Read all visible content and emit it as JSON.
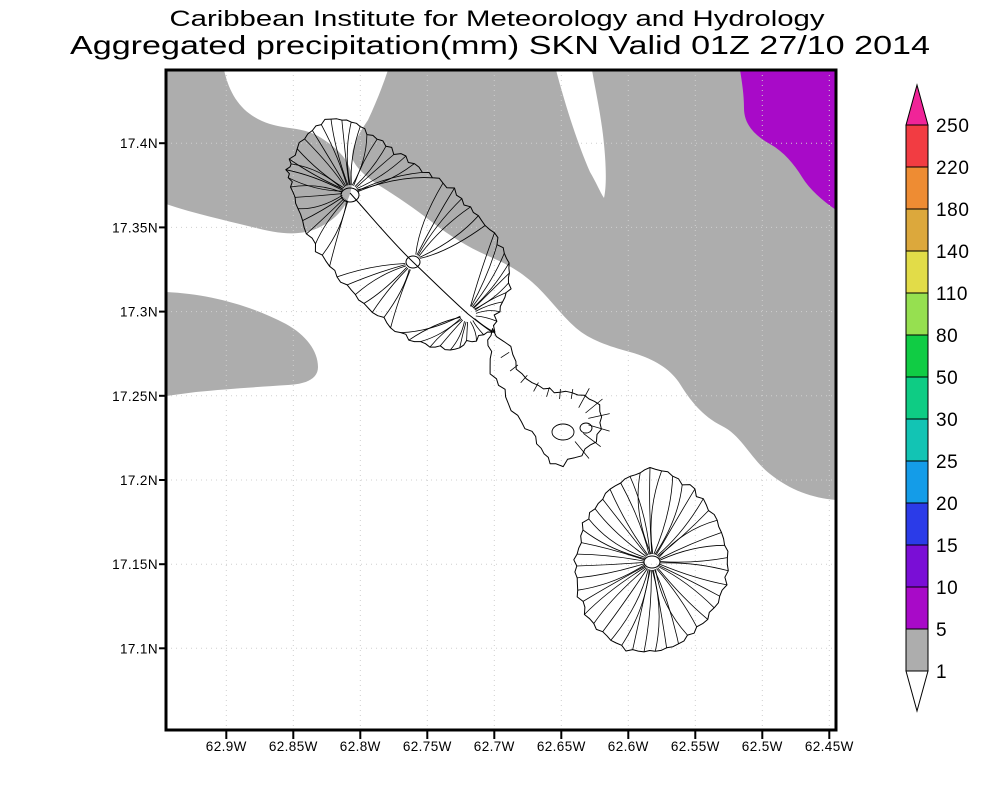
{
  "figure": {
    "title_line1": "Caribbean Institute for Meteorology and Hydrology",
    "title_line2": "Aggregated precipitation(mm) SKN Valid 01Z 27/10 2014"
  },
  "map": {
    "x_ticks": [
      {
        "label": "62.9W",
        "lon": 62.9
      },
      {
        "label": "62.85W",
        "lon": 62.85
      },
      {
        "label": "62.8W",
        "lon": 62.8
      },
      {
        "label": "62.75W",
        "lon": 62.75
      },
      {
        "label": "62.7W",
        "lon": 62.7
      },
      {
        "label": "62.65W",
        "lon": 62.65
      },
      {
        "label": "62.6W",
        "lon": 62.6
      },
      {
        "label": "62.55W",
        "lon": 62.55
      },
      {
        "label": "62.5W",
        "lon": 62.5
      },
      {
        "label": "62.45W",
        "lon": 62.45
      }
    ],
    "y_ticks": [
      {
        "label": "17.4N",
        "lat": 17.4
      },
      {
        "label": "17.35N",
        "lat": 17.35
      },
      {
        "label": "17.3N",
        "lat": 17.3
      },
      {
        "label": "17.25N",
        "lat": 17.25
      },
      {
        "label": "17.2N",
        "lat": 17.2
      },
      {
        "label": "17.15N",
        "lat": 17.15
      },
      {
        "label": "17.1N",
        "lat": 17.1
      }
    ],
    "colors": {
      "background": "#ffffff",
      "grid": "#cfcfcf",
      "land_outline": "#000000",
      "rain_1_5_gray": "#ADADAD",
      "rain_5_10_purple": "#A80AC8"
    }
  },
  "colorbar": {
    "labels": [
      "250",
      "220",
      "180",
      "140",
      "110",
      "80",
      "50",
      "30",
      "25",
      "20",
      "15",
      "10",
      "5",
      "1"
    ],
    "segments_top_to_bottom": [
      "#F23C42",
      "#EE8C33",
      "#DCA83C",
      "#E2DC48",
      "#96E050",
      "#10CC44",
      "#0ECC84",
      "#12C4B4",
      "#149CE8",
      "#2B3BE8",
      "#7A0ED6",
      "#A80AC8",
      "#ADADAD"
    ],
    "over_arrow_color": "#F02498",
    "under_arrow_color": "#FFFFFF"
  },
  "chart_data": {
    "type": "heatmap",
    "title": "Aggregated precipitation(mm) SKN Valid 01Z 27/10 2014",
    "subtitle": "Caribbean Institute for Meteorology and Hydrology",
    "x_axis": {
      "ticks": [
        "62.9W",
        "62.85W",
        "62.8W",
        "62.75W",
        "62.7W",
        "62.65W",
        "62.6W",
        "62.55W",
        "62.5W",
        "62.45W"
      ],
      "range_deg_west": [
        62.945,
        62.445
      ]
    },
    "y_axis": {
      "ticks": [
        "17.4N",
        "17.35N",
        "17.3N",
        "17.25N",
        "17.2N",
        "17.15N",
        "17.1N"
      ],
      "range_deg_north": [
        17.05,
        17.445
      ]
    },
    "grid": true,
    "legend": {
      "position": "right",
      "levels_mm": [
        1,
        5,
        10,
        15,
        20,
        25,
        30,
        50,
        80,
        110,
        140,
        180,
        220,
        250
      ],
      "colors_low_to_high": [
        "#FFFFFF",
        "#ADADAD",
        "#A80AC8",
        "#7A0ED6",
        "#2B3BE8",
        "#149CE8",
        "#12C4B4",
        "#0ECC84",
        "#10CC44",
        "#96E050",
        "#E2DC48",
        "#DCA83C",
        "#EE8C33",
        "#F23C42",
        "#F02498"
      ]
    },
    "shaded_regions": [
      {
        "value_mm": "1-5",
        "color": "#ADADAD",
        "location": "broad band across the north and east of the domain plus a lobe at the west edge near 17.25N-17.3N"
      },
      {
        "value_mm": "5-10",
        "color": "#A80AC8",
        "location": "patch in the top-right corner of the domain"
      }
    ]
  }
}
